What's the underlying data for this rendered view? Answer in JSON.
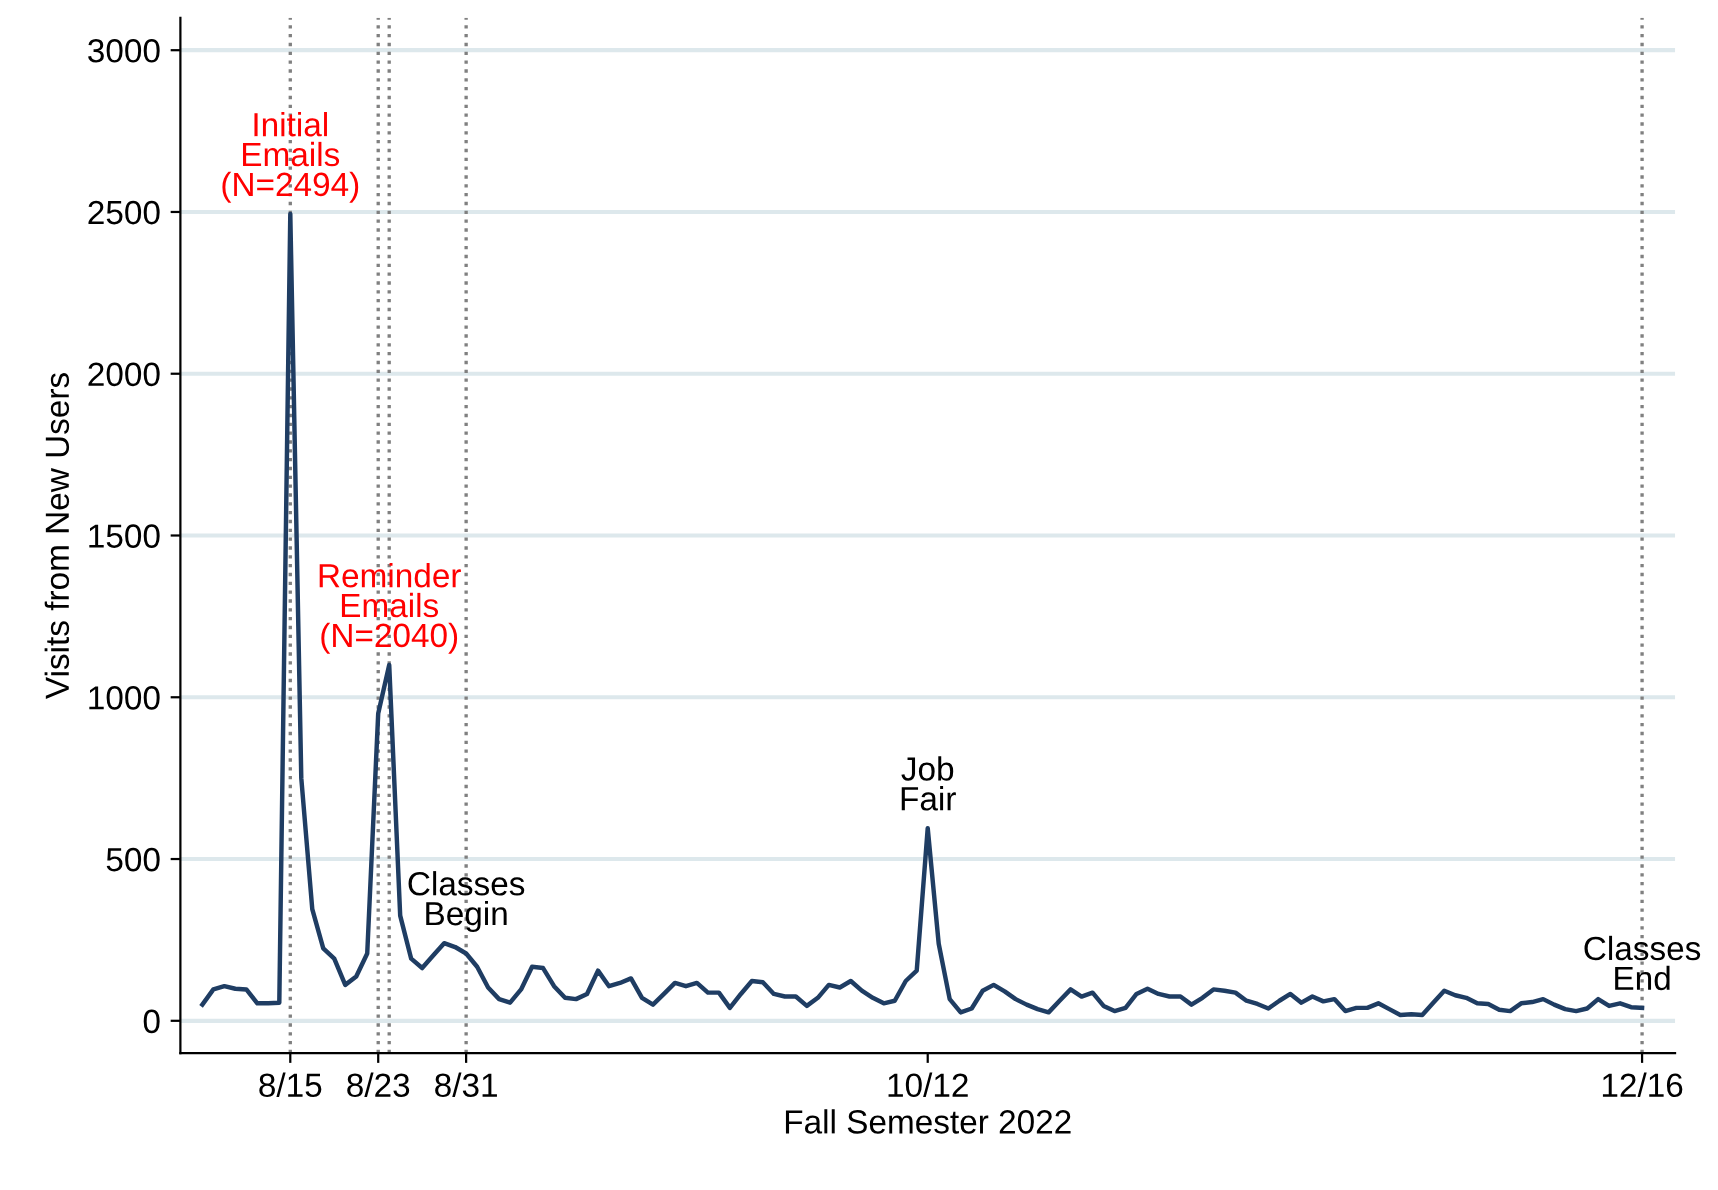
{
  "chart_data": {
    "type": "line",
    "xlabel": "Fall Semester 2022",
    "ylabel": "Visits from New Users",
    "x": [
      "2022-08-07",
      "2022-08-08",
      "2022-08-09",
      "2022-08-10",
      "2022-08-11",
      "2022-08-12",
      "2022-08-13",
      "2022-08-14",
      "2022-08-15",
      "2022-08-16",
      "2022-08-17",
      "2022-08-18",
      "2022-08-19",
      "2022-08-20",
      "2022-08-21",
      "2022-08-22",
      "2022-08-23",
      "2022-08-24",
      "2022-08-25",
      "2022-08-26",
      "2022-08-27",
      "2022-08-28",
      "2022-08-29",
      "2022-08-30",
      "2022-08-31",
      "2022-09-01",
      "2022-09-02",
      "2022-09-03",
      "2022-09-04",
      "2022-09-05",
      "2022-09-06",
      "2022-09-07",
      "2022-09-08",
      "2022-09-09",
      "2022-09-10",
      "2022-09-11",
      "2022-09-12",
      "2022-09-13",
      "2022-09-14",
      "2022-09-15",
      "2022-09-16",
      "2022-09-17",
      "2022-09-18",
      "2022-09-19",
      "2022-09-20",
      "2022-09-21",
      "2022-09-22",
      "2022-09-23",
      "2022-09-24",
      "2022-09-25",
      "2022-09-26",
      "2022-09-27",
      "2022-09-28",
      "2022-09-29",
      "2022-09-30",
      "2022-10-01",
      "2022-10-02",
      "2022-10-03",
      "2022-10-04",
      "2022-10-05",
      "2022-10-06",
      "2022-10-07",
      "2022-10-08",
      "2022-10-09",
      "2022-10-10",
      "2022-10-11",
      "2022-10-12",
      "2022-10-13",
      "2022-10-14",
      "2022-10-15",
      "2022-10-16",
      "2022-10-17",
      "2022-10-18",
      "2022-10-19",
      "2022-10-20",
      "2022-10-21",
      "2022-10-22",
      "2022-10-23",
      "2022-10-24",
      "2022-10-25",
      "2022-10-26",
      "2022-10-27",
      "2022-10-28",
      "2022-10-29",
      "2022-10-30",
      "2022-10-31",
      "2022-11-01",
      "2022-11-02",
      "2022-11-03",
      "2022-11-04",
      "2022-11-05",
      "2022-11-06",
      "2022-11-07",
      "2022-11-08",
      "2022-11-09",
      "2022-11-10",
      "2022-11-11",
      "2022-11-12",
      "2022-11-13",
      "2022-11-14",
      "2022-11-15",
      "2022-11-16",
      "2022-11-17",
      "2022-11-18",
      "2022-11-19",
      "2022-11-20",
      "2022-11-21",
      "2022-11-22",
      "2022-11-23",
      "2022-11-24",
      "2022-11-25",
      "2022-11-26",
      "2022-11-27",
      "2022-11-28",
      "2022-11-29",
      "2022-11-30",
      "2022-12-01",
      "2022-12-02",
      "2022-12-03",
      "2022-12-04",
      "2022-12-05",
      "2022-12-06",
      "2022-12-07",
      "2022-12-08",
      "2022-12-09",
      "2022-12-10",
      "2022-12-11",
      "2022-12-12",
      "2022-12-13",
      "2022-12-14",
      "2022-12-15",
      "2022-12-16"
    ],
    "series": [
      {
        "color": "#1f3d63",
        "values": [
          50,
          97,
          107,
          99,
          97,
          54,
          54,
          56,
          2494,
          750,
          345,
          224,
          192,
          111,
          137,
          208,
          950,
          1100,
          325,
          192,
          163,
          202,
          240,
          228,
          208,
          167,
          103,
          67,
          56,
          97,
          167,
          163,
          107,
          71,
          67,
          83,
          155,
          107,
          117,
          131,
          71,
          50,
          83,
          117,
          107,
          117,
          87,
          87,
          40,
          83,
          123,
          119,
          83,
          75,
          75,
          46,
          71,
          111,
          103,
          123,
          93,
          71,
          54,
          62,
          123,
          155,
          595,
          238,
          67,
          26,
          38,
          93,
          111,
          91,
          67,
          50,
          36,
          26,
          62,
          97,
          75,
          87,
          46,
          30,
          40,
          83,
          99,
          83,
          75,
          75,
          50,
          71,
          97,
          93,
          87,
          62,
          52,
          38,
          62,
          83,
          56,
          75,
          60,
          67,
          30,
          40,
          40,
          54,
          36,
          18,
          20,
          18,
          56,
          93,
          79,
          71,
          54,
          52,
          34,
          30,
          54,
          58,
          67,
          50,
          36,
          30,
          38,
          67,
          46,
          54,
          42,
          40
        ]
      }
    ],
    "xlim": [
      "2022-08-05",
      "2022-12-19"
    ],
    "xticks": [
      {
        "value": "2022-08-15",
        "label": "8/15"
      },
      {
        "value": "2022-08-23",
        "label": "8/23"
      },
      {
        "value": "2022-08-31",
        "label": "8/31"
      },
      {
        "value": "2022-10-12",
        "label": "10/12"
      },
      {
        "value": "2022-12-16",
        "label": "12/16"
      }
    ],
    "ylim": [
      -100,
      3100
    ],
    "yticks": [
      0,
      500,
      1000,
      1500,
      2000,
      2500,
      3000
    ],
    "grid": "y",
    "marker": "none",
    "line_style": "solid",
    "ref_lines": [
      {
        "axis": "x",
        "value": "2022-08-15",
        "color": "#808080",
        "line_style": "dotted"
      },
      {
        "axis": "x",
        "value": "2022-08-23",
        "color": "#808080",
        "line_style": "dotted"
      },
      {
        "axis": "x",
        "value": "2022-08-24",
        "color": "#808080",
        "line_style": "dotted"
      },
      {
        "axis": "x",
        "value": "2022-08-31",
        "color": "#808080",
        "line_style": "dotted"
      },
      {
        "axis": "x",
        "value": "2022-12-16",
        "color": "#808080",
        "line_style": "dotted"
      }
    ],
    "annotations": [
      {
        "text": "Initial\nEmails\n(N=2494)",
        "x": "2022-08-15",
        "y": 2494
      },
      {
        "text": "Reminder\nEmails\n(N=2040)",
        "x": "2022-08-24",
        "y": 1100
      },
      {
        "text": "Classes\nBegin",
        "x": "2022-08-31",
        "y": 240
      },
      {
        "text": "Job\nFair",
        "x": "2022-10-12",
        "y": 595
      },
      {
        "text": "Classes\nEnd",
        "x": "2022-12-16",
        "y": 40
      }
    ]
  }
}
